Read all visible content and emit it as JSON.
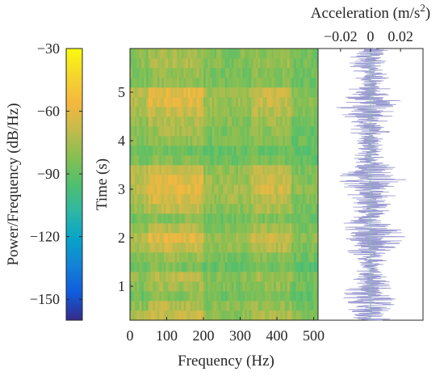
{
  "chart_data": [
    {
      "type": "heatmap",
      "name": "spectrogram",
      "xlabel": "Frequency (Hz)",
      "ylabel": "Time (s)",
      "xlim": [
        0,
        512
      ],
      "ylim": [
        0.3,
        5.9
      ],
      "xticks": [
        "0",
        "100",
        "200",
        "300",
        "400",
        "500"
      ],
      "yticks": [
        "1",
        "2",
        "3",
        "4",
        "5"
      ],
      "colorbar": {
        "label": "Power/Frequency (dB/Hz)",
        "range": [
          -160,
          -30
        ],
        "ticks": [
          "-30",
          "-60",
          "-90",
          "-120",
          "-150"
        ],
        "colormap": "parula"
      },
      "time_bins": [
        0.4,
        0.6,
        0.8,
        1.0,
        1.2,
        1.4,
        1.6,
        1.8,
        2.0,
        2.2,
        2.4,
        2.6,
        2.8,
        3.0,
        3.2,
        3.4,
        3.6,
        3.8,
        4.0,
        4.2,
        4.4,
        4.6,
        4.8,
        5.0,
        5.2,
        5.4,
        5.6,
        5.8
      ],
      "band_power_db": [
        {
          "band_hz": [
            0,
            50
          ],
          "values": [
            -75,
            -80,
            -88,
            -82,
            -80,
            -88,
            -84,
            -74,
            -72,
            -80,
            -86,
            -78,
            -74,
            -70,
            -72,
            -74,
            -86,
            -88,
            -84,
            -82,
            -80,
            -76,
            -72,
            -70,
            -84,
            -84,
            -80,
            -82
          ]
        },
        {
          "band_hz": [
            50,
            200
          ],
          "values": [
            -68,
            -72,
            -82,
            -76,
            -72,
            -84,
            -78,
            -66,
            -62,
            -72,
            -82,
            -70,
            -64,
            -60,
            -62,
            -66,
            -82,
            -86,
            -80,
            -76,
            -72,
            -68,
            -62,
            -60,
            -80,
            -80,
            -74,
            -76
          ]
        },
        {
          "band_hz": [
            200,
            330
          ],
          "values": [
            -80,
            -82,
            -88,
            -84,
            -82,
            -90,
            -86,
            -80,
            -78,
            -82,
            -88,
            -82,
            -78,
            -76,
            -78,
            -80,
            -88,
            -90,
            -86,
            -84,
            -82,
            -80,
            -78,
            -76,
            -86,
            -86,
            -84,
            -84
          ]
        },
        {
          "band_hz": [
            330,
            440
          ],
          "values": [
            -74,
            -78,
            -86,
            -80,
            -76,
            -86,
            -82,
            -72,
            -68,
            -76,
            -84,
            -74,
            -70,
            -66,
            -68,
            -72,
            -84,
            -88,
            -82,
            -80,
            -76,
            -72,
            -68,
            -66,
            -82,
            -82,
            -78,
            -80
          ]
        },
        {
          "band_hz": [
            440,
            512
          ],
          "values": [
            -84,
            -86,
            -90,
            -88,
            -86,
            -92,
            -88,
            -84,
            -82,
            -86,
            -90,
            -86,
            -84,
            -82,
            -84,
            -84,
            -90,
            -92,
            -88,
            -88,
            -86,
            -84,
            -82,
            -82,
            -88,
            -88,
            -86,
            -88
          ]
        }
      ]
    },
    {
      "type": "line",
      "name": "time-history",
      "title": "Acceleration (m/s2)",
      "xlabel": "Acceleration (m/s2)",
      "ylabel": "Time (s)",
      "xlim": [
        -0.035,
        0.035
      ],
      "xticks": [
        "-0.02",
        "0",
        "0.02"
      ],
      "series": [
        {
          "color": "#9999d0",
          "envelope_time": [
            0.4,
            0.8,
            1.2,
            1.6,
            2.0,
            2.4,
            2.8,
            3.2,
            3.6,
            4.0,
            4.4,
            4.8,
            5.2,
            5.6,
            5.9
          ],
          "envelope_amplitude": [
            0.018,
            0.022,
            0.012,
            0.014,
            0.028,
            0.016,
            0.018,
            0.026,
            0.014,
            0.01,
            0.022,
            0.026,
            0.012,
            0.018,
            0.012
          ]
        }
      ]
    }
  ]
}
